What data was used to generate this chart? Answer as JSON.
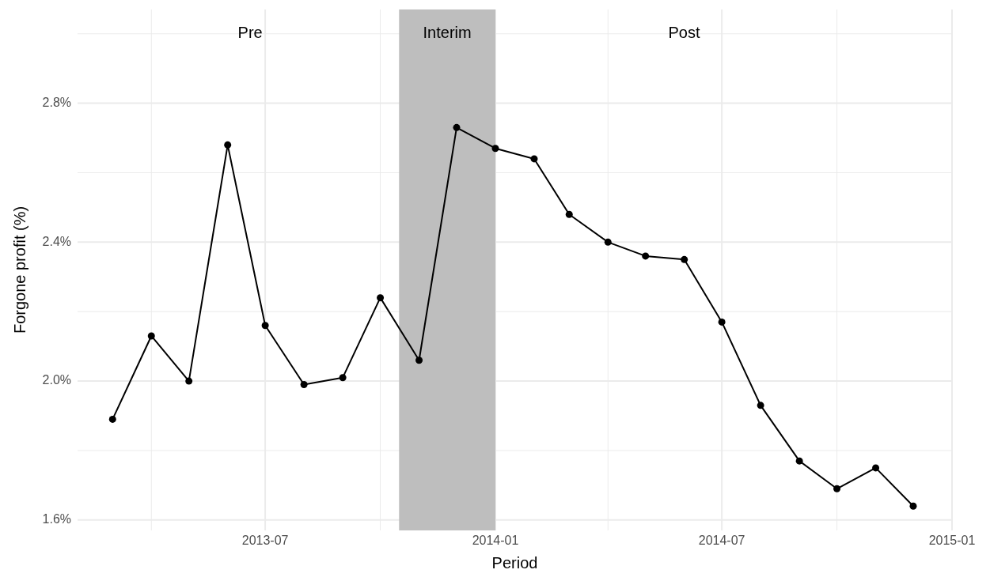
{
  "chart_data": {
    "type": "line",
    "xlabel": "Period",
    "ylabel": "Forgone profit (%)",
    "x": [
      "2013-03-01",
      "2013-04-01",
      "2013-05-01",
      "2013-06-01",
      "2013-07-01",
      "2013-08-01",
      "2013-09-01",
      "2013-10-01",
      "2013-11-01",
      "2013-12-01",
      "2014-01-01",
      "2014-02-01",
      "2014-03-01",
      "2014-04-01",
      "2014-05-01",
      "2014-06-01",
      "2014-07-01",
      "2014-08-01",
      "2014-09-01",
      "2014-10-01",
      "2014-11-01",
      "2014-12-01"
    ],
    "series": [
      {
        "color": "#000000",
        "values": [
          1.89,
          2.13,
          2.0,
          2.68,
          2.16,
          1.99,
          2.01,
          2.24,
          2.06,
          2.73,
          2.67,
          2.64,
          2.48,
          2.4,
          2.36,
          2.35,
          2.17,
          1.93,
          1.77,
          1.69,
          1.75,
          1.64
        ]
      }
    ],
    "xlim": [
      "2013-02-01",
      "2015-01-01"
    ],
    "xticks": [
      {
        "value": "2013-04-01",
        "label": null
      },
      {
        "value": "2013-07-01",
        "label": "2013-07"
      },
      {
        "value": "2013-10-01",
        "label": null
      },
      {
        "value": "2014-01-01",
        "label": "2014-01"
      },
      {
        "value": "2014-04-01",
        "label": null
      },
      {
        "value": "2014-07-01",
        "label": "2014-07"
      },
      {
        "value": "2014-10-01",
        "label": null
      },
      {
        "value": "2015-01-01",
        "label": "2015-01"
      }
    ],
    "ylim": [
      1.57,
      3.07
    ],
    "yticks": [
      {
        "value": 1.6,
        "label": "1.6%"
      },
      {
        "value": 1.8,
        "label": null
      },
      {
        "value": 2.0,
        "label": "2.0%"
      },
      {
        "value": 2.2,
        "label": null
      },
      {
        "value": 2.4,
        "label": "2.4%"
      },
      {
        "value": 2.6,
        "label": null
      },
      {
        "value": 2.8,
        "label": "2.8%"
      },
      {
        "value": 3.0,
        "label": null
      }
    ],
    "bands": [
      {
        "axis": "x",
        "from": "2013-10-16",
        "to": "2014-01-01",
        "label": "Interim",
        "color": "#bebebe"
      }
    ],
    "annotations": [
      "Pre",
      "Post"
    ],
    "grid": true,
    "marker": "circle",
    "line_style": "solid"
  }
}
